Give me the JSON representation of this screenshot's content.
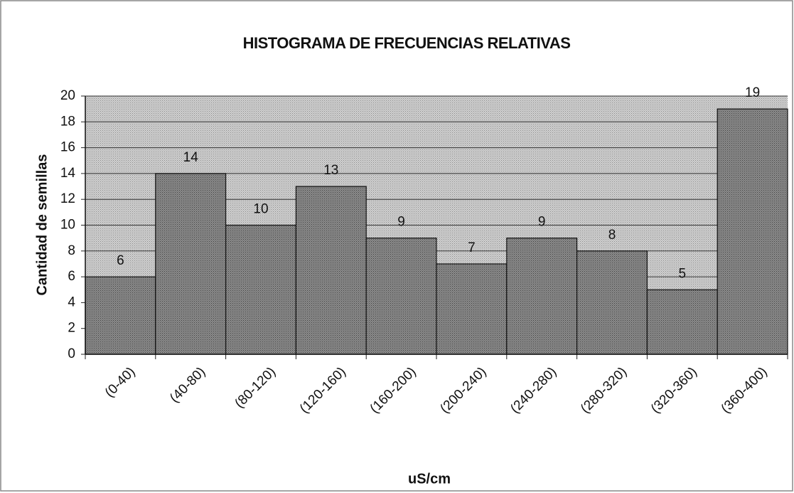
{
  "chart_data": {
    "type": "bar",
    "title": "HISTOGRAMA DE FRECUENCIAS RELATIVAS",
    "x_label": "uS/cm",
    "y_label": "Cantidad de semillas",
    "categories": [
      "(0-40)",
      "(40-80)",
      "(80-120)",
      "(120-160)",
      "(160-200)",
      "(200-240)",
      "(240-280)",
      "(280-320)",
      "(320-360)",
      "(360-400)"
    ],
    "values": [
      6,
      14,
      10,
      13,
      9,
      7,
      9,
      8,
      5,
      19
    ],
    "color": "#8a8a8a",
    "ylim": [
      0,
      20
    ],
    "yticks": [
      0,
      2,
      4,
      6,
      8,
      10,
      12,
      14,
      16,
      18,
      20
    ],
    "grid": true
  }
}
